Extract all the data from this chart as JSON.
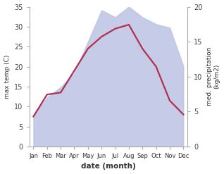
{
  "months": [
    "Jan",
    "Feb",
    "Mar",
    "Apr",
    "May",
    "Jun",
    "Jul",
    "Aug",
    "Sep",
    "Oct",
    "Nov",
    "Dec"
  ],
  "temp_C": [
    7.5,
    13.0,
    13.5,
    19.0,
    24.5,
    27.5,
    29.5,
    30.5,
    24.5,
    20.0,
    11.5,
    8.0
  ],
  "precip_kg": [
    4.5,
    7.0,
    8.5,
    10.5,
    15.0,
    19.5,
    18.5,
    20.0,
    18.5,
    17.5,
    17.0,
    11.5
  ],
  "temp_color": "#b03050",
  "precip_fill_color": "#bcc4e4",
  "temp_ylim": [
    0,
    35
  ],
  "precip_ylim": [
    0,
    20
  ],
  "xlabel": "date (month)",
  "ylabel_left": "max temp (C)",
  "ylabel_right": "med. precipitation\n(kg/m2)",
  "bg_color": "#ffffff",
  "temp_linewidth": 1.6
}
